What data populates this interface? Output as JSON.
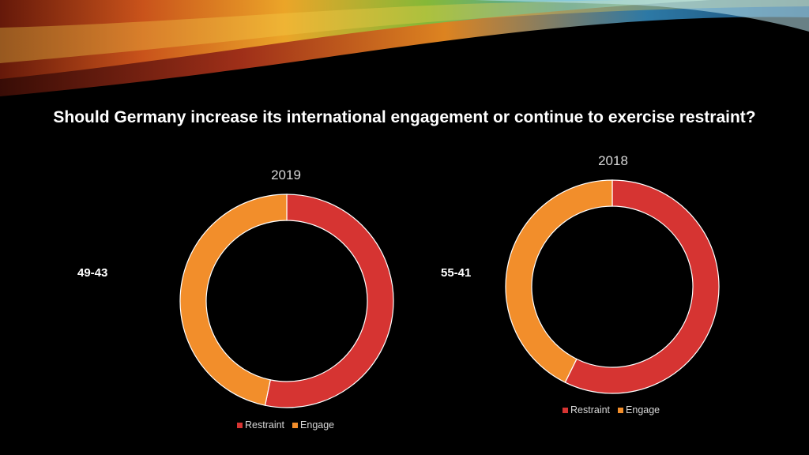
{
  "slide": {
    "title": "Should Germany increase its international engagement or continue to exercise restraint?",
    "colors": {
      "background": "#000000",
      "restraint": "#d63432",
      "engage": "#f28e2b",
      "separator": "#ffffff"
    }
  },
  "chart_data": [
    {
      "type": "donut",
      "title": "2019",
      "annotation": "49-43",
      "categories": [
        "Restraint",
        "Engage"
      ],
      "values": [
        49,
        43
      ],
      "colors": [
        "#d63432",
        "#f28e2b"
      ],
      "legend_position": "bottom"
    },
    {
      "type": "donut",
      "title": "2018",
      "annotation": "55-41",
      "categories": [
        "Restraint",
        "Engage"
      ],
      "values": [
        55,
        41
      ],
      "colors": [
        "#d63432",
        "#f28e2b"
      ],
      "legend_position": "bottom"
    }
  ]
}
